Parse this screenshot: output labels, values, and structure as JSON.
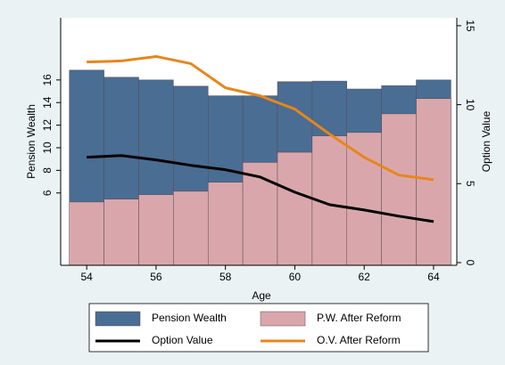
{
  "chart_data": {
    "type": "combo",
    "x_label": "Age",
    "y_label": "Pension Wealth",
    "y2_label": "Option Value",
    "x": [
      54,
      55,
      56,
      57,
      58,
      59,
      60,
      61,
      62,
      63,
      64
    ],
    "series": [
      {
        "name": "Pension Wealth",
        "type": "bar",
        "color": "#4a6d93",
        "values": [
          16.87,
          16.24,
          16.0,
          15.45,
          14.6,
          14.6,
          15.85,
          15.9,
          15.2,
          15.5,
          16.0
        ]
      },
      {
        "name": "P.W. After Reform",
        "type": "bar",
        "color": "#d9a7ab",
        "values": [
          5.2,
          5.45,
          5.85,
          6.15,
          6.95,
          8.7,
          9.6,
          11.05,
          11.35,
          13.0,
          14.35
        ]
      },
      {
        "name": "Option Value",
        "type": "line",
        "axis": "y2",
        "color": "#000000",
        "values": [
          6.67,
          6.78,
          6.5,
          6.16,
          5.88,
          5.42,
          4.46,
          3.67,
          3.33,
          2.94,
          2.6
        ]
      },
      {
        "name": "O.V. After Reform",
        "type": "line",
        "axis": "y2",
        "color": "#e8861a",
        "values": [
          12.7,
          12.77,
          13.05,
          12.6,
          11.07,
          10.56,
          9.72,
          8.14,
          6.67,
          5.54,
          5.25
        ]
      }
    ],
    "xlim": [
      53.25,
      64.67
    ],
    "xticks": [
      54,
      56,
      58,
      60,
      62,
      64
    ],
    "ylim": [
      -0.4,
      21.5
    ],
    "yticks": [
      6,
      8,
      10,
      12,
      14,
      16
    ],
    "y2lim": [
      -0.17,
      15.5
    ],
    "y2ticks": [
      0,
      5,
      10,
      15
    ]
  }
}
